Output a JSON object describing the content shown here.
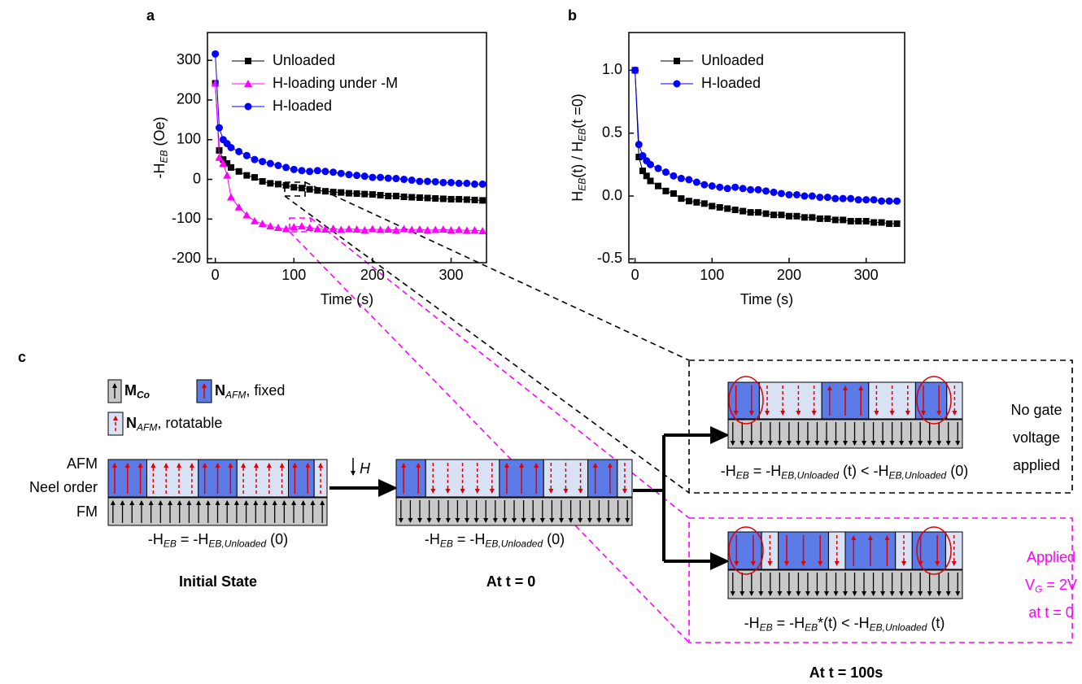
{
  "chart_data": [
    {
      "type": "line",
      "panel": "a",
      "ylabel": [
        "-H",
        "EB",
        " (Oe)"
      ],
      "xlabel": "Time (s)",
      "xlim": [
        -10,
        345
      ],
      "ylim": [
        -210,
        370
      ],
      "xticks": [
        0,
        100,
        200,
        300
      ],
      "yticks": [
        -200,
        -100,
        0,
        100,
        200,
        300
      ],
      "x": [
        0,
        5,
        10,
        15,
        20,
        30,
        40,
        50,
        60,
        70,
        80,
        90,
        100,
        110,
        120,
        130,
        140,
        150,
        160,
        170,
        180,
        190,
        200,
        210,
        220,
        230,
        240,
        250,
        260,
        270,
        280,
        290,
        300,
        310,
        320,
        330,
        340
      ],
      "series": [
        {
          "name": "Unloaded",
          "color": "#000000",
          "marker": "square",
          "values": [
            242,
            73,
            50,
            40,
            30,
            20,
            10,
            5,
            -5,
            -10,
            -12,
            -15,
            -20,
            -22,
            -25,
            -28,
            -30,
            -32,
            -33,
            -35,
            -36,
            -37,
            -38,
            -40,
            -42,
            -42,
            -44,
            -45,
            -46,
            -47,
            -48,
            -49,
            -50,
            -50,
            -51,
            -52,
            -53
          ]
        },
        {
          "name": "H-loading under -M",
          "color": "#ff00ff",
          "marker": "triangle",
          "values": [
            242,
            55,
            40,
            10,
            -45,
            -70,
            -90,
            -105,
            -112,
            -118,
            -122,
            -125,
            -120,
            -118,
            -122,
            -125,
            -126,
            -124,
            -127,
            -125,
            -126,
            -128,
            -125,
            -127,
            -126,
            -128,
            -125,
            -127,
            -126,
            -128,
            -127,
            -126,
            -128,
            -127,
            -129,
            -128,
            -130
          ]
        },
        {
          "name": "H-loaded",
          "color": "#0000ff",
          "marker": "circle",
          "values": [
            316,
            130,
            100,
            90,
            80,
            70,
            60,
            50,
            45,
            40,
            35,
            30,
            25,
            22,
            20,
            22,
            20,
            18,
            15,
            12,
            10,
            8,
            5,
            5,
            3,
            2,
            0,
            -2,
            -5,
            -5,
            -6,
            -8,
            -8,
            -10,
            -10,
            -12,
            -12
          ]
        }
      ]
    },
    {
      "type": "line",
      "panel": "b",
      "ylabel": [
        "H",
        "EB",
        "(t) / H",
        "EB",
        "(t =0)"
      ],
      "xlabel": "Time (s)",
      "xlim": [
        -8,
        350
      ],
      "ylim": [
        -0.53,
        1.3
      ],
      "xticks": [
        0,
        100,
        200,
        300
      ],
      "yticks": [
        -0.5,
        {
          "value": 0,
          "label": "0.0"
        },
        0.5,
        {
          "value": 1,
          "label": "1.0"
        }
      ],
      "x": [
        0,
        5,
        10,
        15,
        20,
        30,
        40,
        50,
        60,
        70,
        80,
        90,
        100,
        110,
        120,
        130,
        140,
        150,
        160,
        170,
        180,
        190,
        200,
        210,
        220,
        230,
        240,
        250,
        260,
        270,
        280,
        290,
        300,
        310,
        320,
        330,
        340
      ],
      "series": [
        {
          "name": "Unloaded",
          "color": "#000000",
          "marker": "square",
          "values": [
            1.0,
            0.31,
            0.2,
            0.16,
            0.12,
            0.08,
            0.04,
            0.02,
            -0.02,
            -0.04,
            -0.05,
            -0.06,
            -0.08,
            -0.09,
            -0.1,
            -0.11,
            -0.12,
            -0.13,
            -0.13,
            -0.14,
            -0.15,
            -0.15,
            -0.16,
            -0.16,
            -0.17,
            -0.17,
            -0.18,
            -0.18,
            -0.19,
            -0.19,
            -0.2,
            -0.2,
            -0.2,
            -0.21,
            -0.21,
            -0.22,
            -0.22
          ]
        },
        {
          "name": "H-loaded",
          "color": "#0000ff",
          "marker": "circle",
          "values": [
            1.0,
            0.41,
            0.32,
            0.28,
            0.25,
            0.22,
            0.19,
            0.16,
            0.14,
            0.13,
            0.11,
            0.09,
            0.08,
            0.07,
            0.06,
            0.07,
            0.06,
            0.05,
            0.05,
            0.04,
            0.03,
            0.02,
            0.01,
            0.01,
            0.0,
            0.0,
            -0.01,
            -0.01,
            -0.02,
            -0.02,
            -0.02,
            -0.03,
            -0.03,
            -0.03,
            -0.04,
            -0.04,
            -0.04
          ]
        }
      ]
    }
  ],
  "diagram": {
    "panel": "c",
    "legend": {
      "m_co": [
        "M",
        "Co"
      ],
      "fixed": [
        "N",
        "AFM",
        ", fixed"
      ],
      "rotatable": [
        "N",
        "AFM",
        ", rotatable"
      ]
    },
    "layers": [
      "AFM",
      "Neel order",
      "FM"
    ],
    "field": "H",
    "equations": [
      [
        "-H",
        "EB",
        " = -H",
        "EB,Unloaded",
        " (0)"
      ],
      [
        "-H",
        "EB",
        " = -H",
        "EB,Unloaded",
        " (0)"
      ],
      [
        "-H",
        "EB",
        " = -H",
        "EB,Unloaded",
        " (t) < -H",
        "EB,Unloaded",
        " (0)"
      ],
      [
        "-H",
        "EB",
        " = -H",
        "EB",
        "*(t) < -H",
        "EB,Unloaded",
        " (t)"
      ]
    ],
    "captions": [
      "Initial State",
      "At t = 0",
      "At t = 100s"
    ],
    "no_gate": [
      "No gate",
      "voltage",
      "applied"
    ],
    "gate": [
      [
        "Applied"
      ],
      [
        "V",
        "G",
        " = 2V"
      ],
      [
        "at t = 0"
      ]
    ]
  }
}
